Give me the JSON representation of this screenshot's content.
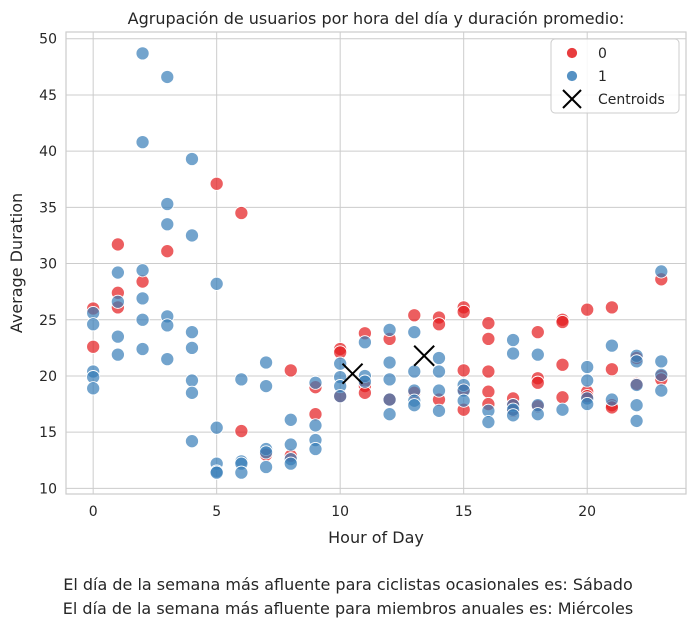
{
  "chart_data": {
    "type": "scatter",
    "title": "Agrupación de usuarios por hora del día y duración promedio:",
    "xlabel": "Hour of Day",
    "ylabel": "Average Duration",
    "xlim": [
      -1.1,
      24.0
    ],
    "ylim": [
      9.5,
      50.6
    ],
    "xticks": [
      0,
      5,
      10,
      15,
      20
    ],
    "yticks": [
      10,
      15,
      20,
      25,
      30,
      35,
      40,
      45,
      50
    ],
    "grid": true,
    "legend_position": "top-right",
    "colors": {
      "cluster0": "#e41a1c",
      "cluster1": "#377eb8",
      "centroid": "#000000"
    },
    "legend": [
      {
        "label": "0",
        "marker": "circle",
        "color": "#e41a1c"
      },
      {
        "label": "1",
        "marker": "circle",
        "color": "#377eb8"
      },
      {
        "label": "Centroids",
        "marker": "x",
        "color": "#000000"
      }
    ],
    "series": [
      {
        "name": "0",
        "points": [
          [
            0,
            26.0
          ],
          [
            0,
            22.6
          ],
          [
            1,
            31.7
          ],
          [
            1,
            27.4
          ],
          [
            1,
            26.1
          ],
          [
            2,
            28.4
          ],
          [
            3,
            31.1
          ],
          [
            5,
            37.1
          ],
          [
            6,
            34.5
          ],
          [
            6,
            15.1
          ],
          [
            7,
            13.0
          ],
          [
            8,
            20.5
          ],
          [
            8,
            12.9
          ],
          [
            9,
            16.6
          ],
          [
            9,
            19.0
          ],
          [
            10,
            22.4
          ],
          [
            10,
            22.1
          ],
          [
            10,
            18.2
          ],
          [
            11,
            23.8
          ],
          [
            11,
            19.1
          ],
          [
            11,
            18.5
          ],
          [
            12,
            23.3
          ],
          [
            12,
            17.9
          ],
          [
            13,
            25.4
          ],
          [
            13,
            18.5
          ],
          [
            14,
            25.2
          ],
          [
            14,
            24.6
          ],
          [
            14,
            17.9
          ],
          [
            15,
            26.1
          ],
          [
            15,
            25.7
          ],
          [
            15,
            20.5
          ],
          [
            15,
            18.8
          ],
          [
            15,
            17.0
          ],
          [
            16,
            24.7
          ],
          [
            16,
            23.3
          ],
          [
            16,
            20.4
          ],
          [
            16,
            18.6
          ],
          [
            16,
            17.5
          ],
          [
            17,
            18.0
          ],
          [
            17,
            17.4
          ],
          [
            17,
            16.9
          ],
          [
            18,
            23.9
          ],
          [
            18,
            19.8
          ],
          [
            18,
            19.4
          ],
          [
            18,
            17.3
          ],
          [
            19,
            25.0
          ],
          [
            19,
            24.8
          ],
          [
            19,
            21.0
          ],
          [
            19,
            18.1
          ],
          [
            20,
            25.9
          ],
          [
            20,
            18.6
          ],
          [
            20,
            18.2
          ],
          [
            21,
            26.1
          ],
          [
            21,
            20.6
          ],
          [
            21,
            17.4
          ],
          [
            21,
            17.2
          ],
          [
            22,
            21.6
          ],
          [
            22,
            19.3
          ],
          [
            23,
            28.6
          ],
          [
            23,
            20.0
          ],
          [
            23,
            19.7
          ]
        ]
      },
      {
        "name": "1",
        "points": [
          [
            0,
            25.6
          ],
          [
            0,
            24.6
          ],
          [
            0,
            20.4
          ],
          [
            0,
            19.9
          ],
          [
            0,
            18.9
          ],
          [
            1,
            29.2
          ],
          [
            1,
            26.6
          ],
          [
            1,
            23.5
          ],
          [
            1,
            21.9
          ],
          [
            2,
            48.7
          ],
          [
            2,
            40.8
          ],
          [
            2,
            29.4
          ],
          [
            2,
            26.9
          ],
          [
            2,
            25.0
          ],
          [
            2,
            22.4
          ],
          [
            3,
            46.6
          ],
          [
            3,
            35.3
          ],
          [
            3,
            33.5
          ],
          [
            3,
            25.3
          ],
          [
            3,
            24.5
          ],
          [
            3,
            21.5
          ],
          [
            4,
            39.3
          ],
          [
            4,
            32.5
          ],
          [
            4,
            23.9
          ],
          [
            4,
            22.5
          ],
          [
            4,
            19.6
          ],
          [
            4,
            18.5
          ],
          [
            4,
            14.2
          ],
          [
            5,
            28.2
          ],
          [
            5,
            15.4
          ],
          [
            5,
            12.2
          ],
          [
            5,
            11.5
          ],
          [
            5,
            11.4
          ],
          [
            6,
            19.7
          ],
          [
            6,
            12.4
          ],
          [
            6,
            12.2
          ],
          [
            6,
            11.4
          ],
          [
            7,
            21.2
          ],
          [
            7,
            19.1
          ],
          [
            7,
            13.5
          ],
          [
            7,
            13.2
          ],
          [
            7,
            11.9
          ],
          [
            8,
            16.1
          ],
          [
            8,
            13.9
          ],
          [
            8,
            12.6
          ],
          [
            8,
            12.2
          ],
          [
            9,
            19.4
          ],
          [
            9,
            15.6
          ],
          [
            9,
            14.3
          ],
          [
            9,
            13.5
          ],
          [
            10,
            21.1
          ],
          [
            10,
            19.9
          ],
          [
            10,
            19.1
          ],
          [
            10,
            18.2
          ],
          [
            11,
            23.0
          ],
          [
            11,
            20.0
          ],
          [
            11,
            19.5
          ],
          [
            12,
            24.1
          ],
          [
            12,
            21.2
          ],
          [
            12,
            19.7
          ],
          [
            12,
            17.9
          ],
          [
            12,
            16.6
          ],
          [
            13,
            23.9
          ],
          [
            13,
            20.4
          ],
          [
            13,
            18.7
          ],
          [
            13,
            17.8
          ],
          [
            13,
            17.4
          ],
          [
            14,
            21.6
          ],
          [
            14,
            20.4
          ],
          [
            14,
            18.7
          ],
          [
            14,
            16.9
          ],
          [
            15,
            19.2
          ],
          [
            15,
            18.7
          ],
          [
            15,
            17.8
          ],
          [
            16,
            16.9
          ],
          [
            16,
            15.9
          ],
          [
            17,
            23.2
          ],
          [
            17,
            22.0
          ],
          [
            17,
            17.4
          ],
          [
            17,
            17.0
          ],
          [
            17,
            16.5
          ],
          [
            18,
            21.9
          ],
          [
            18,
            17.4
          ],
          [
            18,
            16.6
          ],
          [
            19,
            17.0
          ],
          [
            20,
            20.8
          ],
          [
            20,
            19.6
          ],
          [
            20,
            18.0
          ],
          [
            20,
            17.5
          ],
          [
            21,
            22.7
          ],
          [
            21,
            17.9
          ],
          [
            22,
            21.8
          ],
          [
            22,
            21.3
          ],
          [
            22,
            19.2
          ],
          [
            22,
            17.4
          ],
          [
            22,
            16.0
          ],
          [
            23,
            29.3
          ],
          [
            23,
            21.3
          ],
          [
            23,
            20.1
          ],
          [
            23,
            18.7
          ]
        ]
      },
      {
        "name": "Centroids",
        "points": [
          [
            10.5,
            20.2
          ],
          [
            13.4,
            21.8
          ]
        ]
      }
    ]
  },
  "captions": {
    "line1": "El día de la semana más afluente para ciclistas ocasionales es: Sábado",
    "line2": "El día de la semana más afluente para miembros anuales es: Miércoles"
  }
}
